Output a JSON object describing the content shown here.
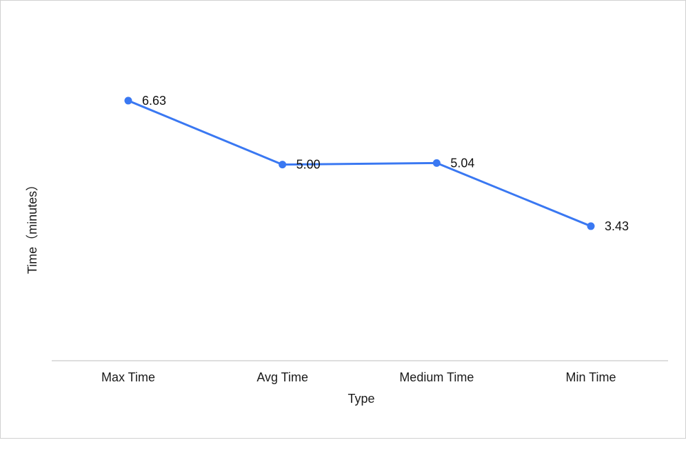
{
  "chart_data": {
    "type": "line",
    "categories": [
      "Max Time",
      "Avg Time",
      "Medium Time",
      "Min Time"
    ],
    "values": [
      6.63,
      5.0,
      5.04,
      3.43
    ],
    "value_labels": [
      "6.63",
      "5.00",
      "5.04",
      "3.43"
    ],
    "xlabel": "Type",
    "ylabel": "Time（minutes）",
    "ylim": [
      0,
      7.42
    ],
    "grid": false,
    "drop_lines": true,
    "colors": {
      "line": "#3a78f2",
      "axis": "#d3d3d3"
    }
  }
}
